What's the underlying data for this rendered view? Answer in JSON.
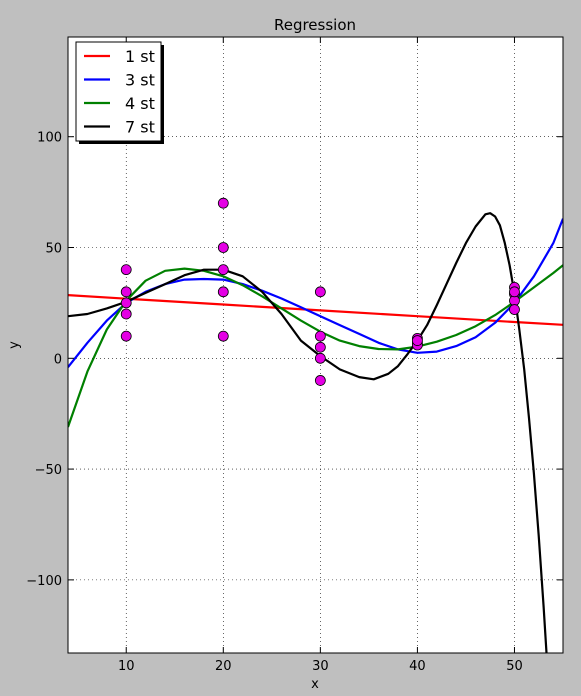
{
  "chart_data": {
    "type": "scatter",
    "title": "Regression",
    "xlabel": "x",
    "ylabel": "y",
    "xlim": [
      4,
      55
    ],
    "ylim": [
      -133,
      145
    ],
    "xticks": [
      10,
      20,
      30,
      40,
      50
    ],
    "yticks": [
      -100,
      -50,
      0,
      50,
      100
    ],
    "xtick_labels": [
      "10",
      "20",
      "30",
      "40",
      "50"
    ],
    "ytick_labels": [
      "−100",
      "−50",
      "0",
      "50",
      "100"
    ],
    "grid": true,
    "legend_position": "top-left",
    "points": {
      "color": "#e400e4",
      "x": [
        10,
        10,
        10,
        10,
        10,
        20,
        20,
        20,
        20,
        20,
        30,
        30,
        30,
        30,
        30,
        40,
        40,
        40,
        40,
        50,
        50,
        50,
        50,
        50
      ],
      "y": [
        40,
        30,
        25,
        20,
        10,
        70,
        50,
        40,
        30,
        10,
        30,
        10,
        5,
        0,
        -10,
        9,
        7,
        6,
        8,
        32,
        29,
        26,
        22,
        30
      ]
    },
    "series": [
      {
        "name": "1 st",
        "color": "#ff0000",
        "x": [
          4,
          10,
          20,
          30,
          40,
          50,
          55
        ],
        "y": [
          28.5,
          26.9,
          24.3,
          21.6,
          19.0,
          16.4,
          15.1
        ]
      },
      {
        "name": "3 st",
        "color": "#0000ff",
        "x": [
          4,
          6,
          8,
          10,
          12,
          14,
          16,
          18,
          20,
          22,
          24,
          26,
          28,
          30,
          32,
          34,
          36,
          38,
          40,
          42,
          44,
          46,
          48,
          50,
          52,
          54,
          55
        ],
        "y": [
          -4,
          7,
          17,
          25,
          30,
          33.5,
          35.5,
          35.8,
          35.5,
          33.5,
          30.5,
          27,
          23,
          19,
          15,
          11,
          7,
          4,
          2.5,
          3,
          5.5,
          9.5,
          16,
          25,
          37,
          52,
          63
        ]
      },
      {
        "name": "4 st",
        "color": "#008000",
        "x": [
          4,
          6,
          8,
          10,
          12,
          14,
          16,
          18,
          20,
          22,
          24,
          26,
          28,
          30,
          32,
          34,
          36,
          38,
          40,
          42,
          44,
          46,
          48,
          50,
          52,
          54,
          55
        ],
        "y": [
          -31,
          -6,
          13,
          26,
          35,
          39.5,
          40.5,
          39.5,
          37,
          33,
          28,
          22.5,
          17,
          12,
          8,
          5.5,
          4.2,
          4,
          5.3,
          7.5,
          10.5,
          14.5,
          19.5,
          25.5,
          32,
          38.5,
          42
        ]
      },
      {
        "name": "7 st",
        "color": "#000000",
        "x": [
          4,
          6,
          8,
          10,
          12,
          14,
          16,
          18,
          20,
          22,
          24,
          26,
          28,
          30,
          32,
          34,
          35.5,
          37,
          38,
          39,
          40,
          41,
          42,
          43,
          44,
          45,
          46,
          47,
          47.5,
          48,
          48.5,
          49,
          49.5,
          50,
          50.5,
          51,
          51.5,
          52,
          52.5,
          53,
          53.3
        ],
        "y": [
          19,
          20,
          22.5,
          25.5,
          29.5,
          33.5,
          37.5,
          40,
          40,
          37,
          30,
          20,
          8,
          1,
          -5,
          -8.5,
          -9.5,
          -7,
          -3.5,
          2,
          8,
          15,
          24,
          33.5,
          43,
          52,
          59.5,
          65,
          65.5,
          64,
          60,
          52,
          42,
          29,
          13,
          -5,
          -27,
          -52,
          -80,
          -112,
          -133
        ]
      }
    ]
  }
}
